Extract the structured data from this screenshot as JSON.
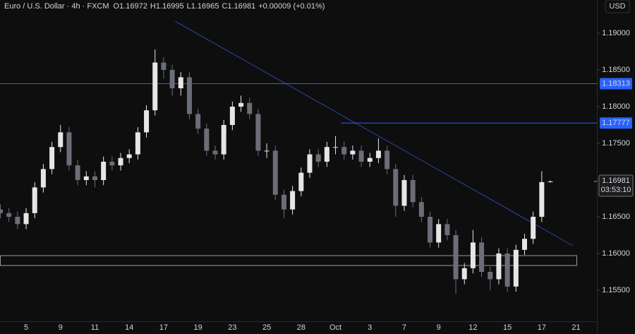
{
  "chart_data": {
    "type": "candlestick",
    "title": "Euro / U.S. Dollar · 4h · FXCM",
    "ohlc_legend": [
      "O1.16972",
      "H1.16995",
      "L1.16965",
      "C1.16981"
    ],
    "change": "+0.00009 (+0.01%)",
    "currency": "USD",
    "up_color": "#e6e6e6",
    "down_color": "#6b6e78",
    "categories": [
      null,
      null,
      null,
      "5",
      null,
      null,
      null,
      "9",
      null,
      null,
      null,
      "11",
      null,
      null,
      null,
      "14",
      null,
      null,
      null,
      "17",
      null,
      null,
      null,
      "19",
      null,
      null,
      null,
      "23",
      null,
      null,
      null,
      "25",
      null,
      null,
      null,
      "28",
      null,
      null,
      null,
      "Oct",
      null,
      null,
      null,
      "3",
      null,
      null,
      null,
      "7",
      null,
      null,
      null,
      "9",
      null,
      null,
      null,
      "12",
      null,
      null,
      null,
      "15",
      null,
      null,
      null,
      "17",
      null,
      null,
      null,
      "21"
    ],
    "open": [
      1.166,
      1.1655,
      1.165,
      1.164,
      1.1655,
      1.169,
      1.1715,
      1.1745,
      1.1765,
      1.172,
      1.17,
      1.1705,
      1.17,
      1.1725,
      1.172,
      1.173,
      1.1735,
      1.1765,
      1.1795,
      1.186,
      1.185,
      1.1825,
      1.184,
      1.179,
      1.177,
      1.174,
      1.1735,
      1.1775,
      1.18,
      1.1805,
      1.179,
      1.174,
      1.174,
      1.168,
      1.166,
      1.1685,
      1.171,
      1.1735,
      1.1725,
      1.1745,
      1.1745,
      1.1735,
      1.174,
      1.1725,
      1.173,
      1.174,
      1.1715,
      1.1665,
      1.17,
      1.167,
      1.165,
      1.1615,
      1.164,
      1.1625,
      1.1565,
      1.158,
      1.1615,
      1.1575,
      1.1565,
      1.16,
      1.1555,
      1.1605,
      1.162,
      1.165,
      1.16972,
      null,
      null,
      null
    ],
    "high": [
      1.1667,
      1.1662,
      1.1657,
      1.1662,
      1.1697,
      1.1722,
      1.1752,
      1.1775,
      1.1772,
      1.1727,
      1.1712,
      1.1712,
      1.1732,
      1.1732,
      1.1737,
      1.1742,
      1.1772,
      1.1802,
      1.1878,
      1.1867,
      1.1857,
      1.1847,
      1.1847,
      1.1797,
      1.1777,
      1.1747,
      1.1782,
      1.1807,
      1.1815,
      1.1812,
      1.1797,
      1.175,
      1.1747,
      1.1687,
      1.1692,
      1.1717,
      1.1742,
      1.1742,
      1.1752,
      1.176,
      1.1752,
      1.1747,
      1.1747,
      1.1737,
      1.1757,
      1.1747,
      1.1722,
      1.1707,
      1.1707,
      1.1677,
      1.1657,
      1.1647,
      1.1647,
      1.1632,
      1.1587,
      1.1632,
      1.1622,
      1.1582,
      1.1607,
      1.1607,
      1.1612,
      1.1627,
      1.1657,
      1.1712,
      1.16995,
      null,
      null,
      null
    ],
    "low": [
      1.1648,
      1.1643,
      1.1633,
      1.1633,
      1.1648,
      1.1683,
      1.1708,
      1.1738,
      1.1713,
      1.1693,
      1.1693,
      1.169,
      1.1693,
      1.1713,
      1.1713,
      1.1723,
      1.1728,
      1.1758,
      1.1788,
      1.1838,
      1.1815,
      1.1815,
      1.1783,
      1.1763,
      1.1733,
      1.1728,
      1.1728,
      1.1768,
      1.1793,
      1.1783,
      1.1733,
      1.173,
      1.1673,
      1.1648,
      1.1653,
      1.1678,
      1.1703,
      1.1718,
      1.1718,
      1.1735,
      1.1728,
      1.1728,
      1.1718,
      1.1718,
      1.1723,
      1.1708,
      1.165,
      1.1658,
      1.1663,
      1.1643,
      1.1608,
      1.1608,
      1.1618,
      1.1545,
      1.1558,
      1.1573,
      1.1568,
      1.155,
      1.1558,
      1.1548,
      1.1548,
      1.1598,
      1.1613,
      1.1643,
      1.16965,
      null,
      null,
      null
    ],
    "close": [
      1.1655,
      1.165,
      1.164,
      1.1655,
      1.169,
      1.1715,
      1.1745,
      1.1765,
      1.172,
      1.17,
      1.1705,
      1.17,
      1.1725,
      1.172,
      1.173,
      1.1735,
      1.1765,
      1.1795,
      1.186,
      1.185,
      1.1825,
      1.184,
      1.179,
      1.177,
      1.174,
      1.1735,
      1.1775,
      1.18,
      1.1805,
      1.179,
      1.174,
      1.174,
      1.168,
      1.166,
      1.1685,
      1.171,
      1.1735,
      1.1725,
      1.1745,
      1.1745,
      1.1735,
      1.174,
      1.1725,
      1.173,
      1.174,
      1.1715,
      1.1665,
      1.17,
      1.167,
      1.165,
      1.1615,
      1.164,
      1.1625,
      1.1565,
      1.158,
      1.1615,
      1.1575,
      1.1565,
      1.16,
      1.1555,
      1.1605,
      1.162,
      1.165,
      1.16972,
      1.16981,
      null,
      null,
      null
    ],
    "ylim": [
      1.15077,
      1.19452
    ],
    "yticks": [
      {
        "value": 1.155,
        "label": "1.15500"
      },
      {
        "value": 1.16,
        "label": "1.16000"
      },
      {
        "value": 1.165,
        "label": "1.16500"
      },
      {
        "value": 1.17,
        "label": "1.17000"
      },
      {
        "value": 1.175,
        "label": "1.17500"
      },
      {
        "value": 1.18,
        "label": "1.18000"
      },
      {
        "value": 1.185,
        "label": "1.18500"
      },
      {
        "value": 1.19,
        "label": "1.19000"
      }
    ],
    "levels": [
      1.18313,
      1.17777
    ],
    "level_color": "#2962ff",
    "last_price": 1.16981,
    "countdown": "03:53:10"
  }
}
